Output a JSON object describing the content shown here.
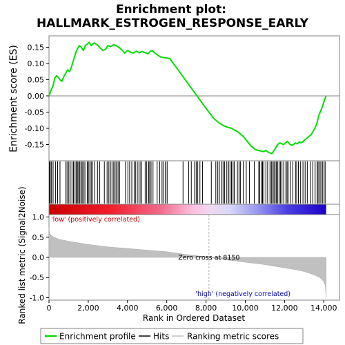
{
  "chart_data": {
    "type": "line",
    "title": "Enrichment plot:",
    "subtitle": "HALLMARK_ESTROGEN_RESPONSE_EARLY",
    "xlabel": "Rank in Ordered Dataset",
    "xlim": [
      0,
      14800
    ],
    "x_ticks": [
      0,
      2000,
      4000,
      6000,
      8000,
      10000,
      12000,
      14000
    ],
    "x_tick_labels": [
      "0",
      "2,000",
      "4,000",
      "6,000",
      "8,000",
      "10,000",
      "12,000",
      "14,000"
    ],
    "es_panel": {
      "ylabel": "Enrichment score (ES)",
      "ylim": [
        -0.2,
        0.185
      ],
      "y_ticks": [
        -0.15,
        -0.1,
        -0.05,
        0.0,
        0.05,
        0.1,
        0.15
      ],
      "y_tick_labels": [
        "-0.15",
        "-0.10",
        "-0.05",
        "0.00",
        "0.05",
        "0.10",
        "0.15"
      ],
      "series": {
        "name": "Enrichment profile",
        "color": "#00dd00",
        "x": [
          0,
          60,
          120,
          200,
          300,
          380,
          460,
          560,
          660,
          760,
          850,
          950,
          1050,
          1150,
          1250,
          1350,
          1450,
          1550,
          1650,
          1750,
          1850,
          1950,
          2050,
          2150,
          2300,
          2450,
          2600,
          2750,
          2900,
          3000,
          3150,
          3300,
          3450,
          3600,
          3750,
          3850,
          4000,
          4150,
          4300,
          4450,
          4600,
          4750,
          4900,
          5050,
          5150,
          5250,
          5400,
          5550,
          5700,
          5850,
          6000,
          6150,
          6400,
          6700,
          7000,
          7300,
          7600,
          7900,
          8150,
          8400,
          8700,
          9000,
          9300,
          9600,
          9900,
          10100,
          10300,
          10500,
          10650,
          10800,
          10950,
          11050,
          11200,
          11350,
          11450,
          11550,
          11650,
          11750,
          11850,
          11950,
          12050,
          12150,
          12250,
          12350,
          12450,
          12550,
          12650,
          12750,
          12850,
          12950,
          13050,
          13150,
          13250,
          13350,
          13450,
          13550,
          13650,
          13750,
          13850,
          13950,
          14050,
          14120
        ],
        "y": [
          0.0,
          0.01,
          0.02,
          0.03,
          0.055,
          0.062,
          0.058,
          0.05,
          0.045,
          0.06,
          0.07,
          0.08,
          0.075,
          0.09,
          0.11,
          0.13,
          0.145,
          0.155,
          0.15,
          0.14,
          0.155,
          0.16,
          0.165,
          0.155,
          0.163,
          0.158,
          0.148,
          0.14,
          0.145,
          0.155,
          0.152,
          0.158,
          0.154,
          0.148,
          0.14,
          0.132,
          0.14,
          0.135,
          0.132,
          0.138,
          0.133,
          0.137,
          0.133,
          0.13,
          0.137,
          0.14,
          0.132,
          0.125,
          0.12,
          0.118,
          0.117,
          0.115,
          0.095,
          0.07,
          0.045,
          0.02,
          -0.005,
          -0.03,
          -0.05,
          -0.07,
          -0.085,
          -0.095,
          -0.1,
          -0.11,
          -0.125,
          -0.14,
          -0.155,
          -0.165,
          -0.168,
          -0.17,
          -0.172,
          -0.168,
          -0.175,
          -0.178,
          -0.17,
          -0.16,
          -0.15,
          -0.145,
          -0.147,
          -0.15,
          -0.145,
          -0.14,
          -0.148,
          -0.152,
          -0.15,
          -0.145,
          -0.148,
          -0.142,
          -0.145,
          -0.14,
          -0.135,
          -0.13,
          -0.125,
          -0.12,
          -0.11,
          -0.1,
          -0.085,
          -0.06,
          -0.045,
          -0.03,
          -0.01,
          0.0
        ]
      }
    },
    "hits": {
      "name": "Hits",
      "color": "#000000",
      "ranks": [
        20,
        70,
        130,
        210,
        330,
        440,
        560,
        860,
        920,
        1010,
        1080,
        1170,
        1250,
        1330,
        1390,
        1450,
        1510,
        1570,
        1630,
        1690,
        1760,
        1830,
        1950,
        2010,
        2080,
        2150,
        2210,
        2330,
        2470,
        2580,
        2820,
        2960,
        3050,
        3130,
        3210,
        3300,
        3370,
        3440,
        3520,
        3600,
        3900,
        4020,
        4110,
        4220,
        4340,
        4420,
        4530,
        4640,
        4720,
        4900,
        4980,
        5080,
        5130,
        5200,
        5300,
        5510,
        5640,
        5760,
        5850,
        5930,
        6020,
        6830,
        7120,
        7250,
        7420,
        7500,
        7580,
        7690,
        7820,
        8270,
        8500,
        8600,
        8680,
        8800,
        8870,
        8950,
        9060,
        9150,
        9220,
        9300,
        9380,
        9440,
        9600,
        9680,
        9750,
        9900,
        10050,
        10210,
        10460,
        10690,
        10730,
        10810,
        10880,
        10950,
        11050,
        11140,
        11260,
        11330,
        11400,
        11460,
        11520,
        11580,
        11650,
        11720,
        11790,
        11870,
        11960,
        12070,
        12130,
        12180,
        12290,
        12420,
        12560,
        12620,
        12710,
        12820,
        12940,
        13050,
        13160,
        13320,
        13440,
        13560,
        13660,
        13710,
        13780,
        13850,
        13930,
        14010,
        14070
      ]
    },
    "metric_panel": {
      "ylabel": "Ranked list metric (Signal2Noise)",
      "ylim": [
        -1.06,
        1.06
      ],
      "y_ticks": [
        -1.0,
        -0.5,
        0.0,
        0.5,
        1.0
      ],
      "y_tick_labels": [
        "-1.0",
        "-0.5",
        "0.0",
        "0.5",
        "1.0"
      ],
      "metric_x": [
        0,
        30,
        100,
        250,
        500,
        1000,
        2000,
        3000,
        4000,
        5000,
        6000,
        7000,
        8000,
        8150,
        9000,
        10000,
        11000,
        12000,
        12500,
        13000,
        13500,
        13800,
        14000,
        14080,
        14120
      ],
      "metric_y": [
        0.75,
        0.6,
        0.55,
        0.5,
        0.45,
        0.4,
        0.32,
        0.26,
        0.22,
        0.18,
        0.14,
        0.07,
        0.015,
        0.0,
        -0.06,
        -0.12,
        -0.18,
        -0.26,
        -0.3,
        -0.35,
        -0.43,
        -0.5,
        -0.6,
        -0.7,
        -1.0
      ],
      "fill_color": "#c0c0c0",
      "zero_cross_label": "Zero cross at 8150",
      "zero_cross_rank": 8150,
      "pos_label": "'low' (positively correlated)",
      "neg_label": "'high' (negatively correlated)",
      "pos_label_color": "#cc0000",
      "neg_label_color": "#0000bb"
    },
    "legend": {
      "placement": "bottom",
      "entries": [
        {
          "label": "Enrichment profile",
          "color": "#00dd00"
        },
        {
          "label": "Hits",
          "color": "#000000"
        },
        {
          "label": "Ranking metric scores",
          "color": "#c0c0c0"
        }
      ]
    }
  }
}
